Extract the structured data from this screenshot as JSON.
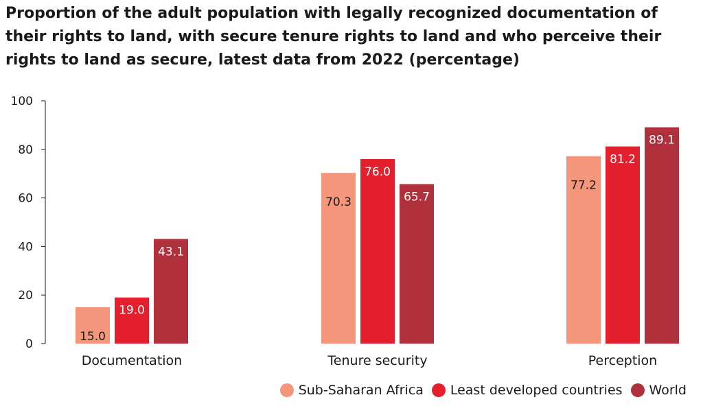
{
  "title_lines": [
    "Proportion of the adult population with legally recognized documentation of",
    "their rights to land, with secure tenure rights to land and who perceive their",
    "rights to land as secure, latest data from 2022 (percentage)"
  ],
  "chart_data": {
    "type": "bar",
    "title": "Proportion of the adult population with legally recognized documentation of their rights to land, with secure tenure rights to land and who perceive their rights to land as secure, latest data from 2022 (percentage)",
    "categories": [
      "Documentation",
      "Tenure security",
      "Perception"
    ],
    "series": [
      {
        "name": "Sub-Saharan Africa",
        "values": [
          15.0,
          70.3,
          77.2
        ],
        "labels": [
          "15.0",
          "70.3",
          "77.2"
        ],
        "color": "#f4967c",
        "label_color": "#1a1a1a"
      },
      {
        "name": "Least developed countries",
        "values": [
          19.0,
          76.0,
          81.2
        ],
        "labels": [
          "19.0",
          "76.0",
          "81.2"
        ],
        "color": "#e5202e",
        "label_color": "#ffffff"
      },
      {
        "name": "World",
        "values": [
          43.1,
          65.7,
          89.1
        ],
        "labels": [
          "43.1",
          "65.7",
          "89.1"
        ],
        "color": "#b0313c",
        "label_color": "#ffffff"
      }
    ],
    "yticks": [
      "0",
      "20",
      "40",
      "60",
      "80",
      "100"
    ],
    "ylim": [
      0,
      100
    ],
    "xlabel": "",
    "ylabel": "",
    "grid": false,
    "legend_position": "bottom-right"
  }
}
